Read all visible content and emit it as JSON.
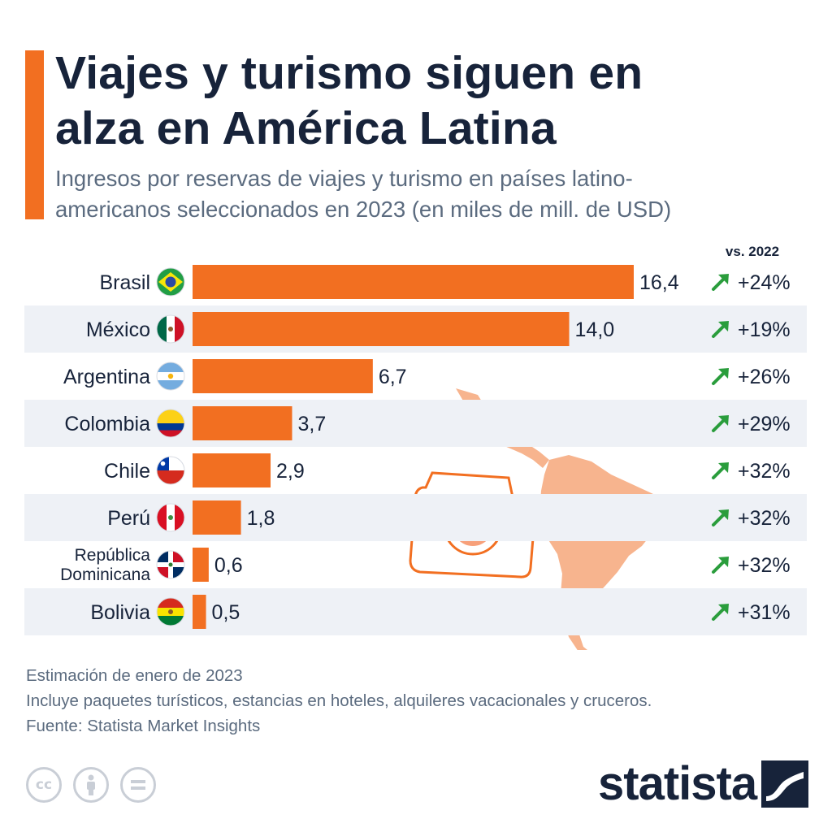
{
  "header": {
    "title_line1": "Viajes y turismo siguen en",
    "title_line2": "alza en América Latina",
    "subtitle_line1": "Ingresos por reservas de viajes y turismo en países latino-",
    "subtitle_line2": "americanos seleccionados en 2023 (en miles de mill. de USD)"
  },
  "change_header": "vs. 2022",
  "chart_data": {
    "type": "bar",
    "orientation": "horizontal",
    "categories": [
      "Brasil",
      "México",
      "Argentina",
      "Colombia",
      "Chile",
      "Perú",
      "República Dominicana",
      "Bolivia"
    ],
    "category_lines": [
      [
        "Brasil"
      ],
      [
        "México"
      ],
      [
        "Argentina"
      ],
      [
        "Colombia"
      ],
      [
        "Chile"
      ],
      [
        "Perú"
      ],
      [
        "República",
        "Dominicana"
      ],
      [
        "Bolivia"
      ]
    ],
    "values": [
      16.4,
      14.0,
      6.7,
      3.7,
      2.9,
      1.8,
      0.6,
      0.5
    ],
    "value_labels": [
      "16,4",
      "14,0",
      "6,7",
      "3,7",
      "2,9",
      "1,8",
      "0,6",
      "0,5"
    ],
    "change_vs_2022": [
      "+24%",
      "+19%",
      "+26%",
      "+29%",
      "+32%",
      "+32%",
      "+32%",
      "+31%"
    ],
    "flags": [
      "flag-brazil",
      "flag-mexico",
      "flag-argentina",
      "flag-colombia",
      "flag-chile",
      "flag-peru",
      "flag-dominican-republic",
      "flag-bolivia"
    ],
    "xlim": [
      0,
      16.4
    ],
    "grid": false,
    "colors": {
      "bar": "#f26f21",
      "row_stripe": "#eef1f6",
      "arrow": "#2a9d3c",
      "text": "#17233a"
    }
  },
  "footer": {
    "note1": "Estimación de enero de 2023",
    "note2": "Incluye paquetes turísticos, estancias en hoteles, alquileres vacacionales y cruceros.",
    "source": "Fuente: Statista Market Insights"
  },
  "license_icons": [
    "cc-icon",
    "attribution-icon",
    "no-derivatives-icon"
  ],
  "brand": {
    "name": "statista"
  }
}
